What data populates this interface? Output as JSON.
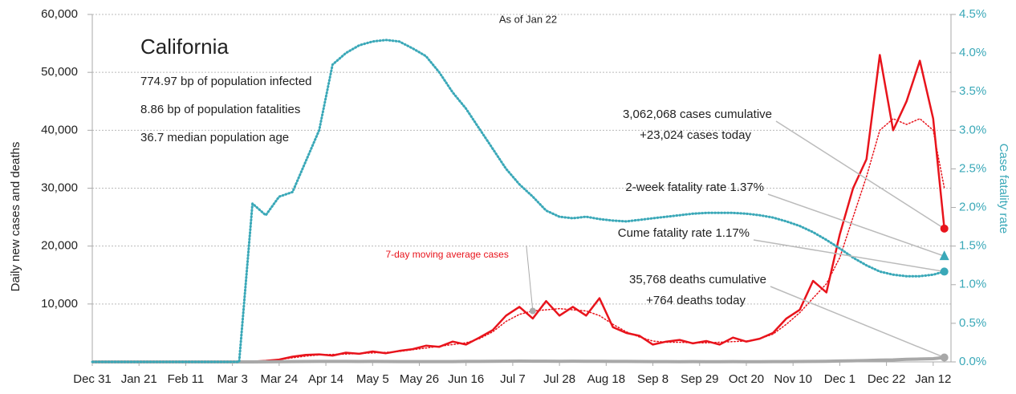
{
  "chart_data": {
    "type": "line",
    "title": "California",
    "subtitle": "As of Jan 22",
    "stats": [
      "774.97 bp of population infected",
      "8.86 bp of population fatalities",
      "36.7 median population age"
    ],
    "y_label": "Daily new cases and deaths",
    "y2_label": "Case fatality rate",
    "x": [
      0,
      6,
      12,
      18,
      24,
      30,
      36,
      42,
      48,
      54,
      60,
      66,
      72,
      78,
      84,
      90,
      96,
      102,
      108,
      114,
      120,
      126,
      132,
      138,
      144,
      150,
      156,
      162,
      168,
      174,
      180,
      186,
      192,
      198,
      204,
      210,
      216,
      222,
      228,
      234,
      240,
      246,
      252,
      258,
      264,
      270,
      276,
      282,
      288,
      294,
      300,
      306,
      312,
      318,
      324,
      330,
      336,
      342,
      348,
      354,
      360,
      366,
      372,
      378,
      383
    ],
    "xlim": [
      0,
      386
    ],
    "xticks": [
      {
        "value": 0,
        "label": "Dec 31"
      },
      {
        "value": 21,
        "label": "Jan 21"
      },
      {
        "value": 42,
        "label": "Feb 11"
      },
      {
        "value": 63,
        "label": "Mar 3"
      },
      {
        "value": 84,
        "label": "Mar 24"
      },
      {
        "value": 105,
        "label": "Apr 14"
      },
      {
        "value": 126,
        "label": "May 5"
      },
      {
        "value": 147,
        "label": "May 26"
      },
      {
        "value": 168,
        "label": "Jun 16"
      },
      {
        "value": 189,
        "label": "Jul 7"
      },
      {
        "value": 210,
        "label": "Jul 28"
      },
      {
        "value": 231,
        "label": "Aug 18"
      },
      {
        "value": 252,
        "label": "Sep 8"
      },
      {
        "value": 273,
        "label": "Sep 29"
      },
      {
        "value": 294,
        "label": "Oct 20"
      },
      {
        "value": 315,
        "label": "Nov 10"
      },
      {
        "value": 336,
        "label": "Dec 1"
      },
      {
        "value": 357,
        "label": "Dec 22"
      },
      {
        "value": 378,
        "label": "Jan 12"
      }
    ],
    "ylim": [
      0,
      60000
    ],
    "yticks": [
      {
        "value": 10000,
        "label": "10,000"
      },
      {
        "value": 20000,
        "label": "20,000"
      },
      {
        "value": 30000,
        "label": "30,000"
      },
      {
        "value": 40000,
        "label": "40,000"
      },
      {
        "value": 50000,
        "label": "50,000"
      },
      {
        "value": 60000,
        "label": "60,000"
      }
    ],
    "y2lim": [
      0,
      4.5
    ],
    "y2ticks": [
      {
        "value": 0,
        "label": "0.0%"
      },
      {
        "value": 0.5,
        "label": "0.5%"
      },
      {
        "value": 1,
        "label": "1.0%"
      },
      {
        "value": 1.5,
        "label": "1.5%"
      },
      {
        "value": 2,
        "label": "2.0%"
      },
      {
        "value": 2.5,
        "label": "2.5%"
      },
      {
        "value": 3,
        "label": "3.0%"
      },
      {
        "value": 3.5,
        "label": "3.5%"
      },
      {
        "value": 4,
        "label": "4.0%"
      },
      {
        "value": 4.5,
        "label": "4.5%"
      }
    ],
    "grid": true,
    "series": [
      {
        "color": "#e8141c",
        "style": "solid",
        "width": 2.5,
        "values": [
          0,
          0,
          0,
          0,
          0,
          0,
          0,
          0,
          0,
          0,
          0,
          0,
          50,
          200,
          400,
          900,
          1200,
          1300,
          1100,
          1600,
          1400,
          1800,
          1500,
          1900,
          2200,
          2800,
          2600,
          3500,
          3000,
          4200,
          5500,
          8000,
          9500,
          7500,
          10500,
          8000,
          9500,
          8000,
          11000,
          6000,
          5000,
          4500,
          3000,
          3500,
          3800,
          3200,
          3600,
          3000,
          4200,
          3500,
          4000,
          5000,
          7500,
          9000,
          14000,
          12000,
          22000,
          30000,
          35000,
          53000,
          40000,
          45000,
          52000,
          42000,
          23024
        ]
      },
      {
        "name": "7-day moving average cases",
        "color": "#e8141c",
        "style": "dotted",
        "width": 1.5,
        "values": [
          0,
          0,
          0,
          0,
          0,
          0,
          0,
          0,
          0,
          0,
          0,
          0,
          30,
          150,
          400,
          700,
          1000,
          1200,
          1300,
          1350,
          1450,
          1550,
          1650,
          1800,
          2100,
          2400,
          2700,
          3000,
          3300,
          4000,
          5200,
          7000,
          8200,
          8800,
          9000,
          9200,
          9000,
          8800,
          8000,
          6500,
          5200,
          4300,
          3600,
          3400,
          3400,
          3300,
          3300,
          3400,
          3500,
          3600,
          4000,
          4800,
          6500,
          8500,
          11000,
          13500,
          18000,
          25000,
          32000,
          40000,
          42000,
          41000,
          42000,
          40000,
          30000
        ]
      },
      {
        "color": "#a8a8a8",
        "style": "solid",
        "width": 4,
        "values": [
          0,
          0,
          0,
          0,
          0,
          0,
          0,
          0,
          0,
          0,
          0,
          0,
          5,
          20,
          40,
          60,
          70,
          80,
          80,
          90,
          70,
          80,
          70,
          60,
          60,
          50,
          60,
          60,
          80,
          90,
          110,
          130,
          140,
          120,
          130,
          110,
          120,
          100,
          110,
          90,
          80,
          70,
          50,
          50,
          40,
          50,
          40,
          40,
          50,
          40,
          40,
          50,
          60,
          70,
          80,
          100,
          150,
          200,
          250,
          300,
          350,
          450,
          500,
          550,
          764
        ]
      },
      {
        "color": "#3aa8b8",
        "style": "dotted",
        "width": 3,
        "axis": "y2",
        "values": [
          0,
          0,
          0,
          0,
          0,
          0,
          0,
          0,
          0,
          0,
          0,
          0,
          2.05,
          1.9,
          2.14,
          2.2,
          2.6,
          3.0,
          3.85,
          4.0,
          4.1,
          4.15,
          4.17,
          4.15,
          4.06,
          3.96,
          3.75,
          3.49,
          3.28,
          3.02,
          2.76,
          2.5,
          2.3,
          2.14,
          1.96,
          1.88,
          1.86,
          1.88,
          1.85,
          1.83,
          1.82,
          1.84,
          1.86,
          1.88,
          1.9,
          1.92,
          1.93,
          1.93,
          1.93,
          1.92,
          1.9,
          1.87,
          1.82,
          1.76,
          1.68,
          1.58,
          1.47,
          1.35,
          1.25,
          1.17,
          1.13,
          1.11,
          1.11,
          1.13,
          1.17
        ]
      }
    ],
    "annotations": [
      {
        "lines": [
          "3,062,068 cases cumulative",
          "+23,024 cases today"
        ],
        "x": 383,
        "value": 23024,
        "marker": "circle",
        "color": "#e8141c"
      },
      {
        "lines": [
          "2-week fatality rate 1.37%"
        ],
        "x": 383,
        "value": 1.37,
        "axis": "y2",
        "marker": "triangle",
        "color": "#3aa8b8"
      },
      {
        "lines": [
          "Cume fatality rate 1.17%"
        ],
        "x": 383,
        "value": 1.17,
        "axis": "y2",
        "marker": "circle",
        "color": "#3aa8b8"
      },
      {
        "lines": [
          "35,768 deaths cumulative",
          "+764 deaths today"
        ],
        "x": 383,
        "value": 764,
        "marker": "circle",
        "color": "#a8a8a8"
      }
    ]
  }
}
